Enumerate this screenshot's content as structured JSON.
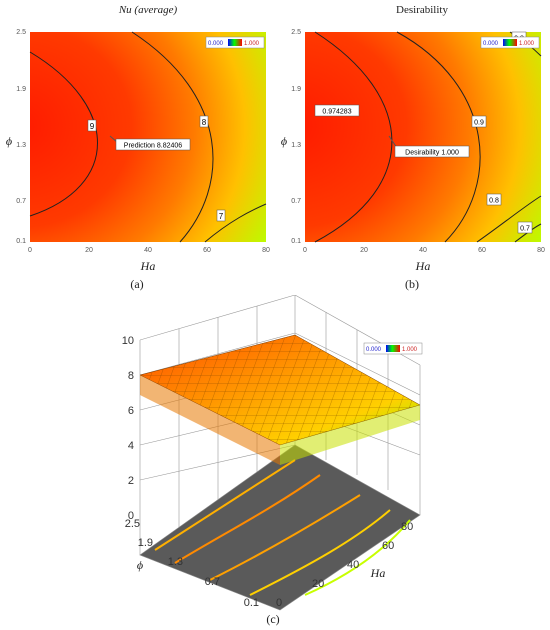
{
  "panels": {
    "a": {
      "title": "Nu (average)",
      "caption": "(a)",
      "annotation": "Prediction  8.82406",
      "legend_min": "0.000",
      "legend_max": "1.000"
    },
    "b": {
      "title": "Desirability",
      "caption": "(b)",
      "annotation": "Desirability  1.000",
      "peak_label": "0.974283",
      "legend_min": "0.000",
      "legend_max": "1.000"
    },
    "c": {
      "caption": "(c)",
      "legend_min": "0.000",
      "legend_max": "1.000"
    }
  },
  "chart_data": [
    {
      "type": "heatmap",
      "subtype": "contour",
      "title": "Nu (average)",
      "xlabel": "Ha",
      "ylabel": "ϕ",
      "xlim": [
        0,
        80
      ],
      "ylim": [
        0.1,
        2.5
      ],
      "x_ticks": [
        "0",
        "20",
        "40",
        "60",
        "80"
      ],
      "y_ticks": [
        "0.1",
        "0.7",
        "1.3",
        "1.9",
        "2.5"
      ],
      "contour_levels": [
        9,
        8,
        7
      ],
      "prediction": {
        "x": 22,
        "y": 1.2,
        "value": 8.82406
      },
      "colorscale": [
        "#ff1a00",
        "#ff6600",
        "#ffcc00",
        "#aaff00"
      ]
    },
    {
      "type": "heatmap",
      "subtype": "contour",
      "title": "Desirability",
      "xlabel": "Ha",
      "ylabel": "ϕ",
      "xlim": [
        0,
        80
      ],
      "ylim": [
        0.1,
        2.5
      ],
      "x_ticks": [
        "0",
        "20",
        "40",
        "60",
        "80"
      ],
      "y_ticks": [
        "0.1",
        "0.7",
        "1.3",
        "1.9",
        "2.5"
      ],
      "contour_levels": [
        "0.974283",
        "0.9",
        "0.8",
        "0.7"
      ],
      "prediction": {
        "x": 22,
        "y": 1.2,
        "value": 1.0
      },
      "colorscale": [
        "#ff1a00",
        "#ff6600",
        "#ffcc00",
        "#aaff00"
      ]
    },
    {
      "type": "surface",
      "zlabel": "Nu (average)",
      "xlabel": "Ha",
      "ylabel": "ϕ",
      "xlim": [
        0,
        80
      ],
      "ylim": [
        0.1,
        2.5
      ],
      "zlim": [
        0,
        10
      ],
      "x_ticks": [
        "0",
        "20",
        "40",
        "60",
        "80"
      ],
      "y_ticks": [
        "0.1",
        "0.7",
        "1.3",
        "1.9",
        "2.5"
      ],
      "z_ticks": [
        "0",
        "2",
        "4",
        "6",
        "8",
        "10"
      ]
    }
  ]
}
